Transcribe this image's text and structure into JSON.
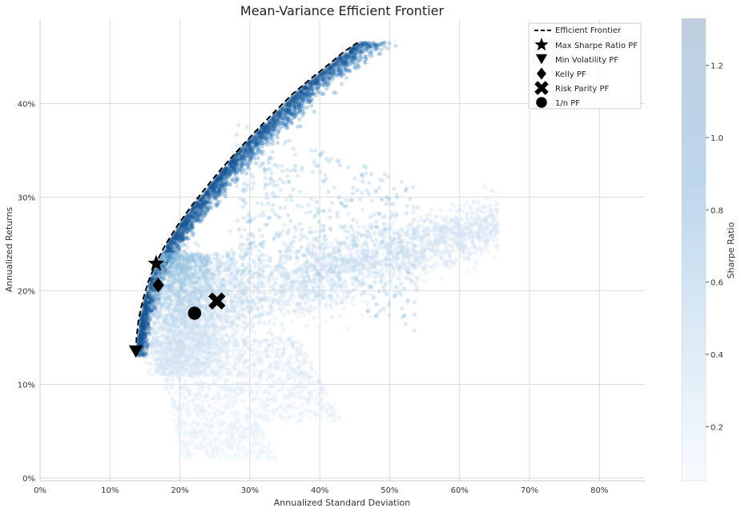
{
  "chart_data": {
    "type": "scatter",
    "title": "Mean-Variance Efficient Frontier",
    "xlabel": "Annualized Standard Deviation",
    "ylabel": "Annualized Returns",
    "xlim": [
      0,
      0.865
    ],
    "ylim": [
      -0.003,
      0.49
    ],
    "x_ticks": [
      0,
      0.1,
      0.2,
      0.3,
      0.4,
      0.5,
      0.6,
      0.7,
      0.8
    ],
    "x_tick_labels": [
      "0%",
      "10%",
      "20%",
      "30%",
      "40%",
      "50%",
      "60%",
      "70%",
      "80%"
    ],
    "y_ticks": [
      0,
      0.1,
      0.2,
      0.3,
      0.4
    ],
    "y_tick_labels": [
      "0%",
      "10%",
      "20%",
      "30%",
      "40%"
    ],
    "grid": true,
    "legend_position": "top-right",
    "colormap": "Blues",
    "colorbar": {
      "label": "Sharpe Ratio",
      "range": [
        0.05,
        1.33
      ],
      "ticks": [
        0.2,
        0.4,
        0.6,
        0.8,
        1.0,
        1.2
      ],
      "tick_labels": [
        "0.2",
        "0.4",
        "0.6",
        "0.8",
        "1.0",
        "1.2"
      ]
    },
    "colors": {
      "colormap_low": "#f7fbff",
      "colormap_high": "#08306b",
      "marker": "#000000",
      "grid": "#d9d9d9"
    },
    "efficient_frontier": {
      "name": "Efficient Frontier",
      "x": [
        0.137,
        0.138,
        0.141,
        0.147,
        0.155,
        0.166,
        0.18,
        0.197,
        0.216,
        0.237,
        0.259,
        0.283,
        0.308,
        0.334,
        0.361,
        0.388,
        0.415,
        0.434,
        0.454
      ],
      "y": [
        0.135,
        0.15,
        0.17,
        0.19,
        0.21,
        0.23,
        0.25,
        0.27,
        0.29,
        0.31,
        0.33,
        0.35,
        0.37,
        0.39,
        0.41,
        0.427,
        0.443,
        0.455,
        0.465
      ]
    },
    "special_portfolios": [
      {
        "name": "Max Sharpe Ratio PF",
        "marker": "star",
        "x": 0.166,
        "y": 0.229
      },
      {
        "name": "Min Volatility PF",
        "marker": "triangle-down",
        "x": 0.137,
        "y": 0.135
      },
      {
        "name": "Kelly PF",
        "marker": "diamond",
        "x": 0.169,
        "y": 0.206
      },
      {
        "name": "Risk Parity PF",
        "marker": "x",
        "x": 0.253,
        "y": 0.189
      },
      {
        "name": "1/n PF",
        "marker": "circle",
        "x": 0.221,
        "y": 0.176
      }
    ],
    "simulated_portfolios": {
      "description_clusters": [
        {
          "region": "upper branch toward max return",
          "x_range": [
            0.16,
            0.455
          ],
          "y_range": [
            0.13,
            0.465
          ],
          "sharpe": "high"
        },
        {
          "region": "right branch toward max volatility",
          "x_range": [
            0.2,
            0.655
          ],
          "y_range": [
            0.1,
            0.27
          ],
          "sharpe": "medium"
        },
        {
          "region": "lower tail",
          "x_range": [
            0.2,
            0.345
          ],
          "y_range": [
            0.02,
            0.15
          ],
          "sharpe": "low"
        }
      ]
    }
  }
}
